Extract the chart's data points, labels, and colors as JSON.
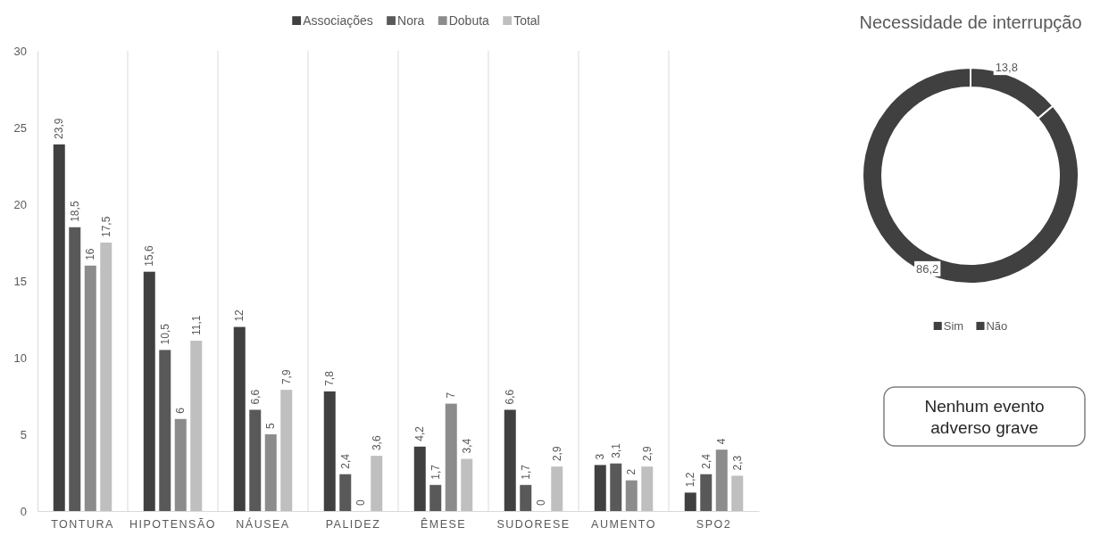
{
  "chart_data": [
    {
      "type": "bar",
      "categories": [
        "TONTURA",
        "HIPOTENSÃO",
        "NÁUSEA",
        "PALIDEZ",
        "ÊMESE",
        "SUDORESE",
        "AUMENTO",
        "SPO2"
      ],
      "series": [
        {
          "name": "Associações",
          "color": "#404040",
          "values": [
            23.9,
            15.6,
            12,
            7.8,
            4.2,
            6.6,
            3,
            1.2
          ],
          "value_labels": [
            "23,9",
            "15,6",
            "12",
            "7,8",
            "4,2",
            "6,6",
            "3",
            "1,2"
          ]
        },
        {
          "name": "Nora",
          "color": "#595959",
          "values": [
            18.5,
            10.5,
            6.6,
            2.4,
            1.7,
            1.7,
            3.1,
            2.4
          ],
          "value_labels": [
            "18,5",
            "10,5",
            "6,6",
            "2,4",
            "1,7",
            "1,7",
            "3,1",
            "2,4"
          ]
        },
        {
          "name": "Dobuta",
          "color": "#8c8c8c",
          "values": [
            16,
            6,
            5,
            0,
            7,
            0,
            2,
            4
          ],
          "value_labels": [
            "16",
            "6",
            "5",
            "0",
            "7",
            "0",
            "2",
            "4"
          ]
        },
        {
          "name": "Total",
          "color": "#bfbfbf",
          "values": [
            17.5,
            11.1,
            7.9,
            3.6,
            3.4,
            2.9,
            2.9,
            2.3
          ],
          "value_labels": [
            "17,5",
            "11,1",
            "7,9",
            "3,6",
            "3,4",
            "2,9",
            "2,9",
            "2,3"
          ]
        }
      ],
      "ylim": [
        0,
        30
      ],
      "yticks": [
        0,
        5,
        10,
        15,
        20,
        25,
        30
      ],
      "grid": "x",
      "legend": "top"
    },
    {
      "type": "donut",
      "title": "Necessidade de interrupção",
      "categories": [
        "Sim",
        "Não"
      ],
      "values": [
        13.8,
        86.2
      ],
      "value_labels": [
        "13,8",
        "86,2"
      ],
      "colors": [
        "#404040",
        "#404040"
      ],
      "legend": "bottom",
      "annotations": [
        "Nenhum evento adverso grave"
      ]
    }
  ]
}
